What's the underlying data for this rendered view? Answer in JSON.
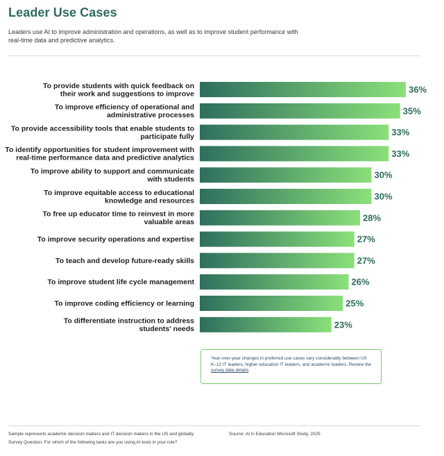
{
  "title": "Leader Use Cases",
  "subtitle": "Leaders use AI to improve administration and operations, as well as to improve student performance with real-time data and predictive analytics.",
  "colors": {
    "title": "#2e6b5d",
    "bar_start": "#2e6e5e",
    "bar_end": "#8be07a",
    "value_label": "#2e6b5d",
    "callout_border": "#7ccf70"
  },
  "chart_data": {
    "type": "bar",
    "orientation": "horizontal",
    "categories": [
      [
        "To provide students with quick feedback on",
        "their work and suggestions to improve"
      ],
      [
        "To improve efficiency of operational and",
        "administrative processes"
      ],
      [
        "To provide accessibility tools that enable students to",
        "participate fully"
      ],
      [
        "To identify opportunities for student improvement with",
        "real-time performance data and predictive analytics"
      ],
      [
        "To improve ability to support and communicate",
        "with students"
      ],
      [
        "To improve equitable access to educational",
        "knowledge and resources"
      ],
      [
        "To free up educator time to reinvest in more",
        "valuable areas"
      ],
      [
        "To improve security operations and expertise"
      ],
      [
        "To teach and develop future-ready skills"
      ],
      [
        "To improve student life cycle management"
      ],
      [
        "To improve coding efficiency or learning"
      ],
      [
        "To differentiate instruction to address",
        "students' needs"
      ]
    ],
    "values": [
      36,
      35,
      33,
      33,
      30,
      30,
      28,
      27,
      27,
      26,
      25,
      23
    ],
    "value_labels": [
      "36%",
      "35%",
      "33%",
      "33%",
      "30%",
      "30%",
      "28%",
      "27%",
      "27%",
      "26%",
      "25%",
      "23%"
    ],
    "unit": "%",
    "grid": false,
    "legend": "none"
  },
  "callout": {
    "text": "Year-over-year changes in preferred use cases vary considerably between US K–12 IT leaders, higher education IT leaders, and academic leaders. Review the ",
    "link": "survey data details",
    "end": "."
  },
  "footer": {
    "sample_note": "Sample represents academic decision makers and IT decision makers in the US and globally.",
    "source": "Source: AI in Education Microsoft Study, 2025",
    "question": "Survey Question: For which of the following tasks are you using AI tools in your role?"
  }
}
